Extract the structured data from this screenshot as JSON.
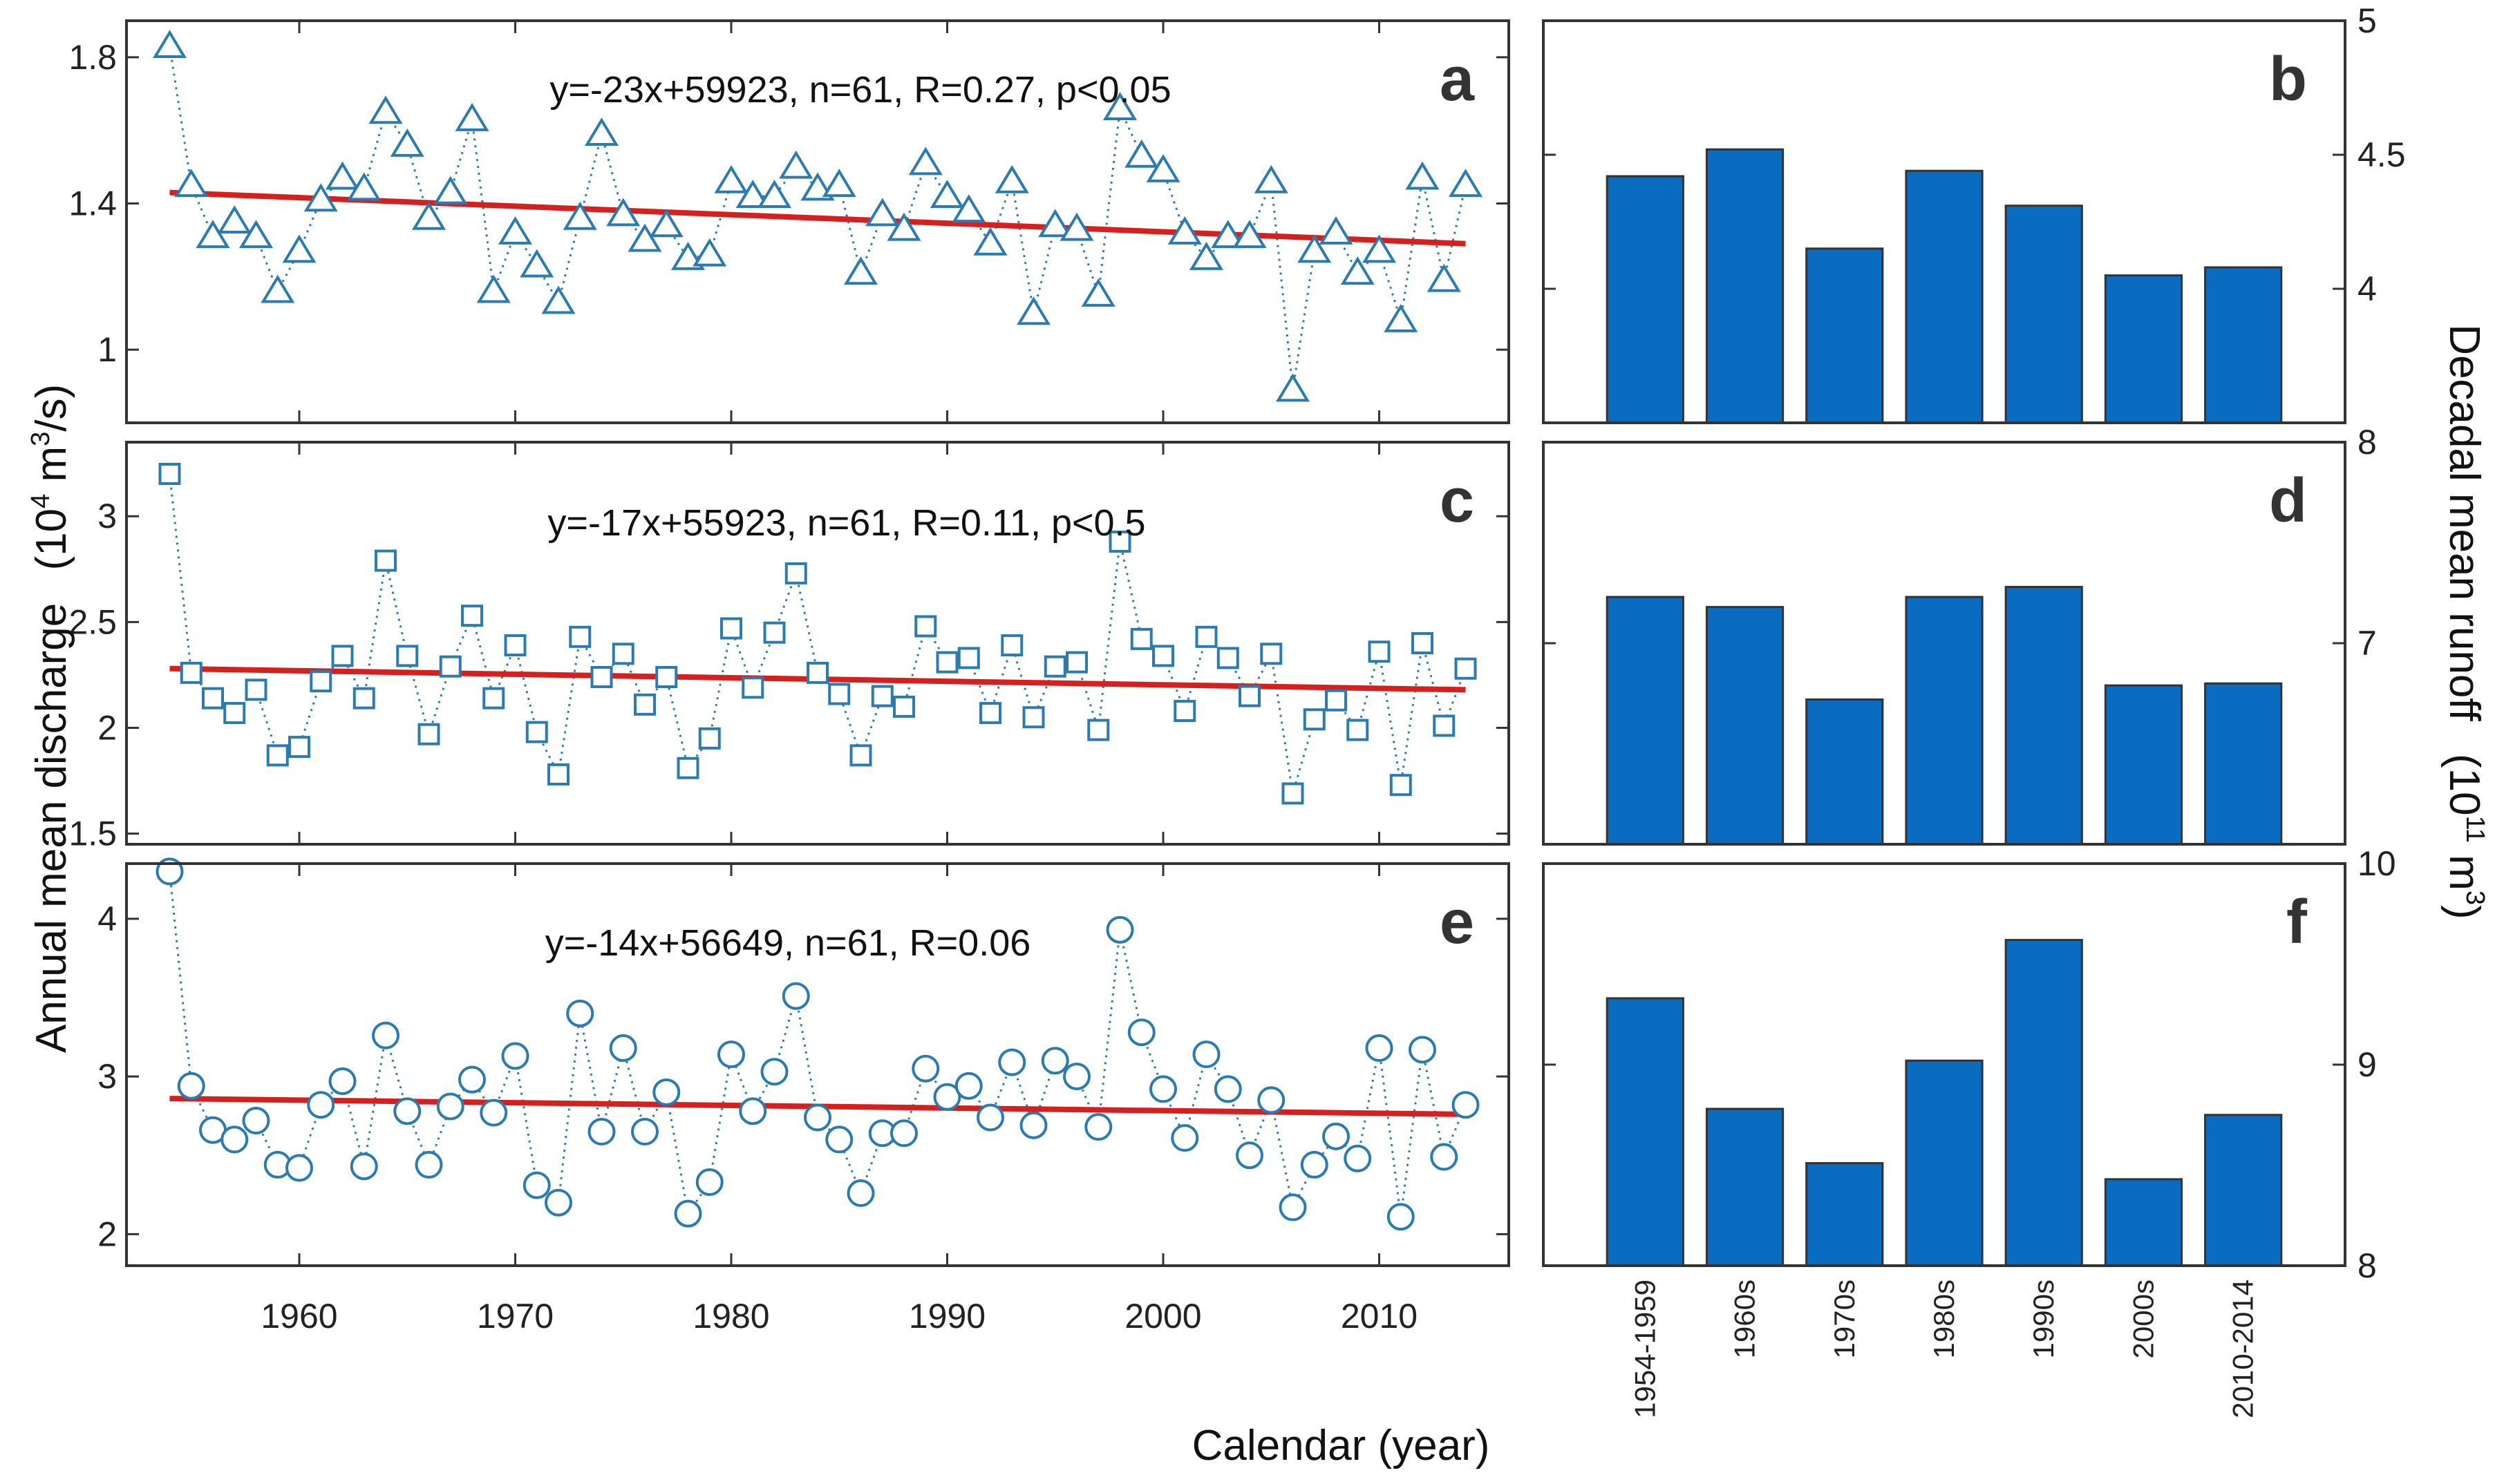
{
  "chart_data": {
    "type": "composite",
    "ylabel_left": "Annual mean discharge",
    "ylabel_left_unit": "(10",
    "ylabel_left_unit_exp": "4",
    "ylabel_left_unit_mid": " m",
    "ylabel_left_unit_exp2": "3",
    "ylabel_left_unit_end": "/s)",
    "ylabel_right": "Decadal mean runoff",
    "ylabel_right_unit": "(10",
    "ylabel_right_unit_exp": "11",
    "ylabel_right_unit_end": " m",
    "ylabel_right_unit_exp2": "3",
    "ylabel_right_unit_close": ")",
    "xlabel": "Calendar (year)",
    "x_ticks": [
      "1960",
      "1970",
      "1980",
      "1990",
      "2000",
      "2010"
    ],
    "x_tick_values": [
      1960,
      1970,
      1980,
      1990,
      2000,
      2010
    ],
    "xlim": [
      1952,
      2016
    ],
    "decade_categories": [
      "1954-1959",
      "1960s",
      "1970s",
      "1980s",
      "1990s",
      "2000s",
      "2010-2014"
    ],
    "color_series": "#2b7ab0",
    "color_trend": "#d62020",
    "color_bar": "#0a6cc0",
    "line_panels": [
      {
        "letter": "a",
        "marker": "triangle",
        "equation": "y=-23x+59923, n=61, R=0.27, p<0.05",
        "ylim": [
          0.8,
          1.9
        ],
        "yticks": [
          1,
          1.4,
          1.8
        ],
        "ytick_labels": [
          "1",
          "1.4",
          "1.8"
        ],
        "trend": [
          1.43,
          1.29
        ],
        "years": [
          1954,
          1955,
          1956,
          1957,
          1958,
          1959,
          1960,
          1961,
          1962,
          1963,
          1964,
          1965,
          1966,
          1967,
          1968,
          1969,
          1970,
          1971,
          1972,
          1973,
          1974,
          1975,
          1976,
          1977,
          1978,
          1979,
          1980,
          1981,
          1982,
          1983,
          1984,
          1985,
          1986,
          1987,
          1988,
          1989,
          1990,
          1991,
          1992,
          1993,
          1994,
          1995,
          1996,
          1997,
          1998,
          1999,
          2000,
          2001,
          2002,
          2003,
          2004,
          2005,
          2006,
          2007,
          2008,
          2009,
          2010,
          2011,
          2012,
          2013,
          2014
        ],
        "values": [
          1.83,
          1.45,
          1.31,
          1.35,
          1.31,
          1.16,
          1.27,
          1.41,
          1.47,
          1.44,
          1.65,
          1.56,
          1.36,
          1.43,
          1.63,
          1.16,
          1.32,
          1.23,
          1.13,
          1.36,
          1.59,
          1.37,
          1.3,
          1.34,
          1.25,
          1.26,
          1.46,
          1.42,
          1.42,
          1.5,
          1.44,
          1.45,
          1.21,
          1.37,
          1.33,
          1.51,
          1.42,
          1.38,
          1.29,
          1.46,
          1.1,
          1.34,
          1.33,
          1.15,
          1.66,
          1.53,
          1.49,
          1.32,
          1.25,
          1.31,
          1.31,
          1.46,
          0.89,
          1.27,
          1.32,
          1.21,
          1.27,
          1.08,
          1.47,
          1.19,
          1.45
        ]
      },
      {
        "letter": "c",
        "marker": "square",
        "equation": "y=-17x+55923, n=61, R=0.11, p<0.5",
        "ylim": [
          1.45,
          3.35
        ],
        "yticks": [
          1.5,
          2,
          2.5,
          3
        ],
        "ytick_labels": [
          "1.5",
          "2",
          "2.5",
          "3"
        ],
        "trend": [
          2.28,
          2.18
        ],
        "years": [
          1954,
          1955,
          1956,
          1957,
          1958,
          1959,
          1960,
          1961,
          1962,
          1963,
          1964,
          1965,
          1966,
          1967,
          1968,
          1969,
          1970,
          1971,
          1972,
          1973,
          1974,
          1975,
          1976,
          1977,
          1978,
          1979,
          1980,
          1981,
          1982,
          1983,
          1984,
          1985,
          1986,
          1987,
          1988,
          1989,
          1990,
          1991,
          1992,
          1993,
          1994,
          1995,
          1996,
          1997,
          1998,
          1999,
          2000,
          2001,
          2002,
          2003,
          2004,
          2005,
          2006,
          2007,
          2008,
          2009,
          2010,
          2011,
          2012,
          2013,
          2014
        ],
        "values": [
          3.2,
          2.26,
          2.14,
          2.07,
          2.18,
          1.87,
          1.91,
          2.22,
          2.34,
          2.14,
          2.79,
          2.34,
          1.97,
          2.29,
          2.53,
          2.14,
          2.39,
          1.98,
          1.78,
          2.43,
          2.24,
          2.35,
          2.11,
          2.24,
          1.81,
          1.95,
          2.47,
          2.19,
          2.45,
          2.73,
          2.26,
          2.16,
          1.87,
          2.15,
          2.1,
          2.48,
          2.31,
          2.33,
          2.07,
          2.39,
          2.05,
          2.29,
          2.31,
          1.99,
          2.88,
          2.42,
          2.34,
          2.08,
          2.43,
          2.33,
          2.15,
          2.35,
          1.69,
          2.04,
          2.13,
          1.99,
          2.36,
          1.73,
          2.4,
          2.01,
          2.28
        ]
      },
      {
        "letter": "e",
        "marker": "circle",
        "equation": "y=-14x+56649, n=61, R=0.06",
        "ylim": [
          1.8,
          4.35
        ],
        "yticks": [
          2,
          3,
          4
        ],
        "ytick_labels": [
          "2",
          "3",
          "4"
        ],
        "trend": [
          2.86,
          2.76
        ],
        "years": [
          1954,
          1955,
          1956,
          1957,
          1958,
          1959,
          1960,
          1961,
          1962,
          1963,
          1964,
          1965,
          1966,
          1967,
          1968,
          1969,
          1970,
          1971,
          1972,
          1973,
          1974,
          1975,
          1976,
          1977,
          1978,
          1979,
          1980,
          1981,
          1982,
          1983,
          1984,
          1985,
          1986,
          1987,
          1988,
          1989,
          1990,
          1991,
          1992,
          1993,
          1994,
          1995,
          1996,
          1997,
          1998,
          1999,
          2000,
          2001,
          2002,
          2003,
          2004,
          2005,
          2006,
          2007,
          2008,
          2009,
          2010,
          2011,
          2012,
          2013,
          2014
        ],
        "values": [
          4.3,
          2.94,
          2.66,
          2.6,
          2.72,
          2.44,
          2.42,
          2.82,
          2.97,
          2.43,
          3.26,
          2.78,
          2.44,
          2.81,
          2.98,
          2.77,
          3.13,
          2.31,
          2.2,
          3.4,
          2.65,
          3.18,
          2.65,
          2.9,
          2.13,
          2.33,
          3.14,
          2.78,
          3.03,
          3.51,
          2.74,
          2.6,
          2.26,
          2.64,
          2.64,
          3.05,
          2.87,
          2.94,
          2.74,
          3.09,
          2.69,
          3.1,
          3.0,
          2.68,
          3.93,
          3.28,
          2.92,
          2.61,
          3.14,
          2.92,
          2.5,
          2.85,
          2.17,
          2.44,
          2.62,
          2.48,
          3.18,
          2.11,
          3.17,
          2.49,
          2.82
        ]
      }
    ],
    "bar_panels": [
      {
        "letter": "b",
        "ylim": [
          3.5,
          5.0
        ],
        "yticks": [
          4,
          4.5,
          5
        ],
        "ytick_labels": [
          "4",
          "4.5",
          "5"
        ],
        "values": [
          4.42,
          4.52,
          4.15,
          4.44,
          4.31,
          4.05,
          4.08
        ]
      },
      {
        "letter": "d",
        "ylim": [
          6.0,
          8.0
        ],
        "yticks": [
          7,
          8
        ],
        "ytick_labels": [
          "7",
          "8"
        ],
        "values": [
          7.23,
          7.18,
          6.72,
          7.23,
          7.28,
          6.79,
          6.8
        ]
      },
      {
        "letter": "f",
        "ylim": [
          8.0,
          10.0
        ],
        "yticks": [
          8,
          9,
          10
        ],
        "ytick_labels": [
          "8",
          "9",
          "10"
        ],
        "values": [
          9.33,
          8.78,
          8.51,
          9.02,
          9.62,
          8.43,
          8.75
        ]
      }
    ]
  }
}
